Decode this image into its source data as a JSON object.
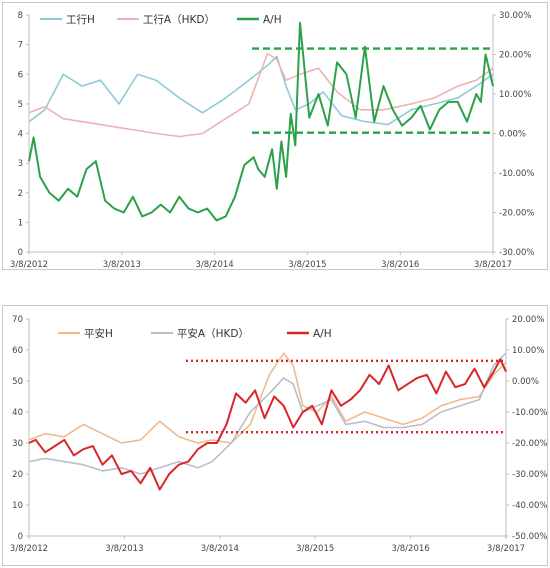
{
  "chart_data": [
    {
      "type": "line",
      "x_ticks": [
        "3/8/2012",
        "3/8/2013",
        "3/8/2014",
        "3/8/2015",
        "3/8/2016",
        "3/8/2017"
      ],
      "y_left_ticks": [
        "0",
        "1",
        "2",
        "3",
        "4",
        "5",
        "6",
        "7",
        "8"
      ],
      "y_right_ticks": [
        "30.00%",
        "20.00%",
        "10.00%",
        "0.00%",
        "-10.00%",
        "-20.00%",
        "-30.00%"
      ],
      "ylim_left": [
        0,
        8
      ],
      "ylim_right": [
        -30,
        30
      ],
      "grid": false,
      "legend_position": "top-left",
      "reference_lines_right_axis": [
        21.5,
        0.2
      ],
      "reference_color": "#2aa14a",
      "series": [
        {
          "name": "工行H",
          "axis": "left",
          "color": "#8ecbd6",
          "x": [
            2012.18,
            2012.35,
            2012.55,
            2012.75,
            2012.95,
            2013.15,
            2013.35,
            2013.55,
            2013.8,
            2014.05,
            2014.3,
            2014.55,
            2014.75,
            2014.85,
            2014.95,
            2015.05,
            2015.2,
            2015.35,
            2015.55,
            2015.8,
            2016.05,
            2016.3,
            2016.55,
            2016.8,
            2017.0,
            2017.18
          ],
          "y": [
            4.4,
            4.8,
            6.0,
            5.6,
            5.8,
            5.0,
            6.0,
            5.8,
            5.2,
            4.7,
            5.2,
            5.8,
            6.3,
            6.6,
            5.6,
            4.8,
            5.0,
            5.4,
            4.6,
            4.4,
            4.3,
            4.8,
            5.0,
            5.2,
            5.6,
            6.0
          ]
        },
        {
          "name": "工行A（HKD）",
          "axis": "left",
          "color": "#efb2b4",
          "x": [
            2012.18,
            2012.35,
            2012.55,
            2012.75,
            2012.95,
            2013.15,
            2013.35,
            2013.55,
            2013.8,
            2014.05,
            2014.3,
            2014.55,
            2014.75,
            2014.85,
            2014.95,
            2015.1,
            2015.3,
            2015.5,
            2015.75,
            2016.0,
            2016.3,
            2016.55,
            2016.8,
            2017.0,
            2017.18
          ],
          "y": [
            4.7,
            4.9,
            4.5,
            4.4,
            4.3,
            4.2,
            4.1,
            4.0,
            3.9,
            4.0,
            4.5,
            5.0,
            6.7,
            6.5,
            5.8,
            6.0,
            6.2,
            5.4,
            4.8,
            4.8,
            5.0,
            5.2,
            5.6,
            5.8,
            6.2
          ]
        },
        {
          "name": "A/H",
          "axis": "right",
          "color": "#2aa14a",
          "x": [
            2012.18,
            2012.23,
            2012.3,
            2012.4,
            2012.5,
            2012.6,
            2012.7,
            2012.8,
            2012.9,
            2013.0,
            2013.1,
            2013.2,
            2013.3,
            2013.4,
            2013.5,
            2013.6,
            2013.7,
            2013.8,
            2013.9,
            2014.0,
            2014.1,
            2014.2,
            2014.3,
            2014.4,
            2014.5,
            2014.6,
            2014.65,
            2014.72,
            2014.8,
            2014.85,
            2014.9,
            2014.95,
            2015.0,
            2015.05,
            2015.1,
            2015.2,
            2015.3,
            2015.4,
            2015.5,
            2015.6,
            2015.7,
            2015.8,
            2015.9,
            2016.0,
            2016.1,
            2016.2,
            2016.3,
            2016.4,
            2016.5,
            2016.6,
            2016.7,
            2016.8,
            2016.9,
            2017.0,
            2017.05,
            2017.1,
            2017.18
          ],
          "y": [
            -7,
            -1,
            -11,
            -15,
            -17,
            -14,
            -16,
            -9,
            -7,
            -17,
            -19,
            -20,
            -16,
            -21,
            -20,
            -18,
            -20,
            -16,
            -19,
            -20,
            -19,
            -22,
            -21,
            -16,
            -8,
            -6,
            -9,
            -11,
            -4,
            -14,
            -2,
            -11,
            5,
            -3,
            28,
            4,
            10,
            2,
            18,
            15,
            4,
            22,
            3,
            12,
            6,
            2,
            4,
            7,
            1,
            6,
            8,
            8,
            3,
            10,
            8,
            20,
            12
          ]
        }
      ]
    },
    {
      "type": "line",
      "x_ticks": [
        "3/8/2012",
        "3/8/2013",
        "3/8/2014",
        "3/8/2015",
        "3/8/2016",
        "3/8/2017"
      ],
      "y_left_ticks": [
        "0",
        "10",
        "20",
        "30",
        "40",
        "50",
        "60",
        "70"
      ],
      "y_right_ticks": [
        "20.00%",
        "10.00%",
        "0.00%",
        "-10.00%",
        "-20.00%",
        "-30.00%",
        "-40.00%",
        "-50.00%"
      ],
      "ylim_left": [
        0,
        70
      ],
      "ylim_right": [
        -50,
        20
      ],
      "grid": false,
      "legend_position": "top-center",
      "reference_lines_right_axis": [
        6.5,
        -16.5
      ],
      "reference_color": "#d9262a",
      "series": [
        {
          "name": "平安H",
          "axis": "left",
          "color": "#f1b98e",
          "x": [
            2012.18,
            2012.35,
            2012.55,
            2012.75,
            2012.95,
            2013.15,
            2013.35,
            2013.55,
            2013.75,
            2013.95,
            2014.1,
            2014.3,
            2014.5,
            2014.7,
            2014.85,
            2014.95,
            2015.05,
            2015.2,
            2015.35,
            2015.5,
            2015.7,
            2015.9,
            2016.1,
            2016.3,
            2016.5,
            2016.7,
            2016.9,
            2017.05,
            2017.18
          ],
          "y": [
            31,
            33,
            32,
            36,
            33,
            30,
            31,
            37,
            32,
            30,
            31,
            30,
            36,
            52,
            59,
            55,
            42,
            40,
            45,
            37,
            40,
            38,
            36,
            38,
            42,
            44,
            45,
            52,
            56
          ]
        },
        {
          "name": "平安A（HKD）",
          "axis": "left",
          "color": "#b9bec8",
          "x": [
            2012.18,
            2012.35,
            2012.55,
            2012.75,
            2012.95,
            2013.15,
            2013.35,
            2013.55,
            2013.75,
            2013.95,
            2014.1,
            2014.3,
            2014.5,
            2014.7,
            2014.85,
            2014.95,
            2015.05,
            2015.2,
            2015.35,
            2015.5,
            2015.7,
            2015.9,
            2016.1,
            2016.3,
            2016.5,
            2016.7,
            2016.9,
            2017.05,
            2017.18
          ],
          "y": [
            24,
            25,
            24,
            23,
            21,
            22,
            20,
            22,
            24,
            22,
            24,
            30,
            40,
            46,
            51,
            49,
            40,
            42,
            44,
            36,
            37,
            35,
            35,
            36,
            40,
            42,
            44,
            55,
            59
          ]
        },
        {
          "name": "A/H",
          "axis": "right",
          "color": "#d9262a",
          "x": [
            2012.18,
            2012.25,
            2012.35,
            2012.45,
            2012.55,
            2012.65,
            2012.75,
            2012.85,
            2012.95,
            2013.05,
            2013.15,
            2013.25,
            2013.35,
            2013.45,
            2013.55,
            2013.65,
            2013.75,
            2013.85,
            2013.95,
            2014.05,
            2014.15,
            2014.25,
            2014.35,
            2014.45,
            2014.55,
            2014.65,
            2014.75,
            2014.85,
            2014.95,
            2015.05,
            2015.15,
            2015.25,
            2015.35,
            2015.45,
            2015.55,
            2015.65,
            2015.75,
            2015.85,
            2015.95,
            2016.05,
            2016.15,
            2016.25,
            2016.35,
            2016.45,
            2016.55,
            2016.65,
            2016.75,
            2016.85,
            2016.95,
            2017.05,
            2017.12,
            2017.18
          ],
          "y": [
            -20,
            -19,
            -23,
            -21,
            -19,
            -24,
            -22,
            -21,
            -27,
            -24,
            -30,
            -29,
            -33,
            -28,
            -35,
            -30,
            -27,
            -26,
            -22,
            -20,
            -20,
            -14,
            -4,
            -7,
            -3,
            -12,
            -5,
            -8,
            -15,
            -10,
            -8,
            -14,
            -3,
            -8,
            -6,
            -3,
            2,
            -1,
            5,
            -3,
            -1,
            1,
            2,
            -4,
            3,
            -2,
            -1,
            4,
            -2,
            3,
            7,
            3
          ]
        }
      ]
    }
  ]
}
